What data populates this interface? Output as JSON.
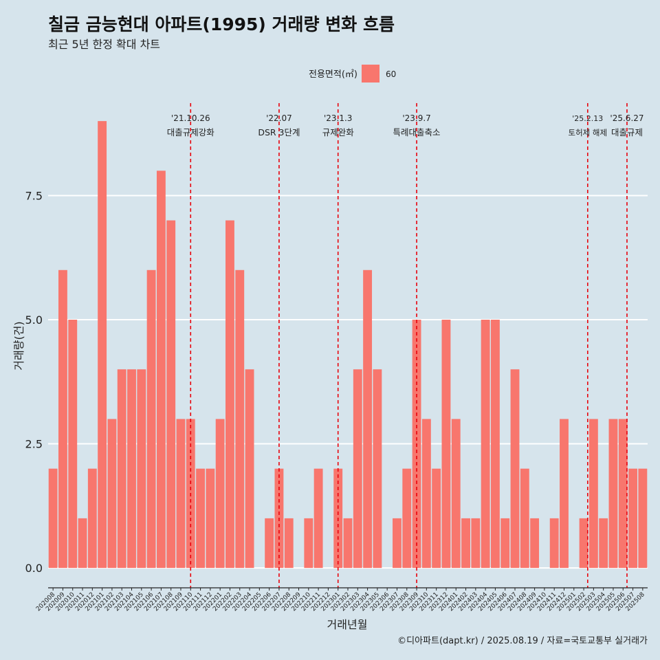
{
  "chart_data": {
    "type": "bar",
    "title": "칠금 금능현대 아파트(1995) 거래량 변화 흐름",
    "subtitle": "최근 5년 한정 확대 차트",
    "xlabel": "거래년월",
    "ylabel": "거래량(건)",
    "caption": "©디아파트(dapt.kr) / 2025.08.19 / 자료=국토교통부 실거래가",
    "legend": {
      "title": "전용면적(㎡)",
      "position": "top",
      "entries": [
        {
          "label": "60",
          "color": "#f8766d"
        }
      ]
    },
    "ylim": [
      -0.4,
      9.5
    ],
    "yticks": [
      0,
      2.5,
      5,
      7.5
    ],
    "ytick_labels": [
      "0.0",
      "2.5",
      "5.0",
      "7.5"
    ],
    "grid": true,
    "colors": {
      "background": "#d6e4ec",
      "bar": "#f8766d",
      "grid": "#ffffff",
      "event_line": "#e8000b"
    },
    "categories": [
      "202008",
      "202009",
      "202010",
      "202011",
      "202012",
      "202101",
      "202102",
      "202103",
      "202104",
      "202105",
      "202106",
      "202107",
      "202108",
      "202109",
      "202110",
      "202111",
      "202112",
      "202201",
      "202202",
      "202203",
      "202204",
      "202205",
      "202206",
      "202207",
      "202208",
      "202209",
      "202210",
      "202211",
      "202212",
      "202301",
      "202302",
      "202303",
      "202304",
      "202305",
      "202306",
      "202307",
      "202308",
      "202309",
      "202310",
      "202311",
      "202312",
      "202401",
      "202402",
      "202403",
      "202404",
      "202405",
      "202406",
      "202407",
      "202408",
      "202409",
      "202410",
      "202411",
      "202412",
      "202501",
      "202502",
      "202503",
      "202504",
      "202505",
      "202506",
      "202507",
      "202508"
    ],
    "series": [
      {
        "values": [
          2,
          6,
          5,
          1,
          2,
          9,
          3,
          4,
          4,
          4,
          6,
          8,
          7,
          3,
          3,
          2,
          2,
          3,
          7,
          6,
          4,
          0,
          1,
          2,
          1,
          0,
          1,
          2,
          0,
          2,
          1,
          4,
          6,
          4,
          0,
          1,
          2,
          5,
          3,
          2,
          5,
          3,
          1,
          1,
          5,
          5,
          1,
          4,
          2,
          1,
          0,
          1,
          3,
          0,
          1,
          3,
          1,
          3,
          3,
          2,
          2
        ]
      }
    ],
    "annotations": [
      {
        "date_line1": "'21.10.26",
        "date_line2": "대출규제강화",
        "category": "202110",
        "offset": 0
      },
      {
        "date_line1": "'22.07",
        "date_line2": "DSR 3단계",
        "category": "202207",
        "offset": 0
      },
      {
        "date_line1": "'23.1.3",
        "date_line2": "규제완화",
        "category": "202301",
        "offset": 0
      },
      {
        "date_line1": "'23.9.7",
        "date_line2": "특례대출축소",
        "category": "202309",
        "offset": 0
      },
      {
        "date_line1": "'25.2.13",
        "date_line2": "토허제 해제",
        "category": "202502",
        "offset": 0.4
      },
      {
        "date_line1": "'25.6.27",
        "date_line2": "대출규제",
        "category": "202506",
        "offset": 0.4
      }
    ]
  }
}
